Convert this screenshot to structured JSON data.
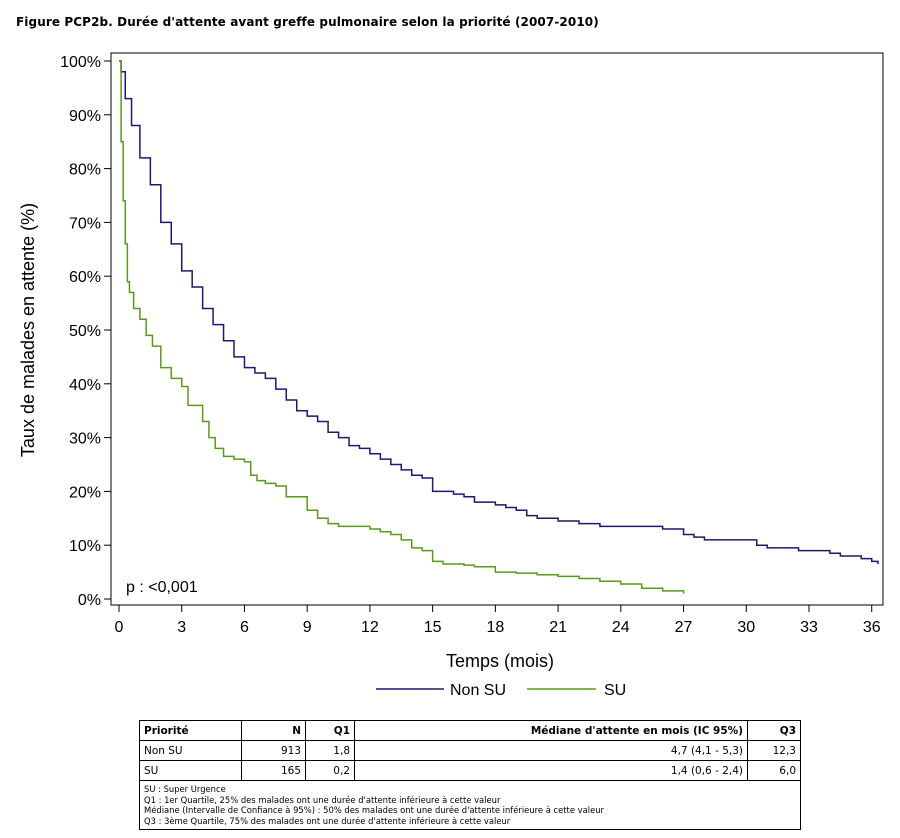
{
  "figure_title": "Figure PCP2b. Durée d'attente avant greffe pulmonaire selon la priorité (2007-2010)",
  "chart_data": {
    "type": "line",
    "xlabel": "Temps (mois)",
    "ylabel": "Taux de malades en attente (%)",
    "xlim": [
      0,
      36.3
    ],
    "ylim": [
      0,
      100
    ],
    "x_ticks": [
      0,
      3,
      6,
      9,
      12,
      15,
      18,
      21,
      24,
      27,
      30,
      33,
      36
    ],
    "y_ticks": [
      0,
      10,
      20,
      30,
      40,
      50,
      60,
      70,
      80,
      90,
      100
    ],
    "y_tick_labels": [
      "0%",
      "10%",
      "20%",
      "30%",
      "40%",
      "50%",
      "60%",
      "70%",
      "80%",
      "90%",
      "100%"
    ],
    "grid": false,
    "legend_position": "bottom-center",
    "annotation": "p : <0,001",
    "series": [
      {
        "name": "Non SU",
        "color": "#1a1a6e",
        "x": [
          0,
          0.1,
          0.3,
          0.6,
          1,
          1.5,
          2,
          2.5,
          3,
          3.5,
          4,
          4.5,
          5,
          5.5,
          6,
          6.5,
          7,
          7.5,
          8,
          8.5,
          9,
          9.5,
          10,
          10.5,
          11,
          11.5,
          12,
          12.5,
          13,
          13.5,
          14,
          14.5,
          15,
          15.5,
          16,
          16.5,
          17,
          17.5,
          18,
          18.5,
          19,
          19.5,
          20,
          20.5,
          21,
          21.5,
          22,
          22.5,
          23,
          23.5,
          24,
          24.5,
          25,
          25.5,
          26,
          26.5,
          27,
          27.5,
          28,
          28.5,
          29,
          29.5,
          30,
          30.5,
          31,
          31.5,
          32,
          32.5,
          33,
          33.5,
          34,
          34.5,
          35,
          35.5,
          36,
          36.3
        ],
        "values": [
          100,
          98,
          93,
          88,
          82,
          77,
          70,
          66,
          61,
          58,
          54,
          51,
          48,
          45,
          43,
          42,
          41,
          39,
          37,
          35,
          34,
          33,
          31,
          30,
          28.5,
          28,
          27,
          26,
          25,
          24,
          23,
          22.5,
          20,
          20,
          19.5,
          19,
          18,
          18,
          17.5,
          17,
          16.5,
          15.5,
          15,
          15,
          14.5,
          14.5,
          14,
          14,
          13.5,
          13.5,
          13.5,
          13.5,
          13.5,
          13.5,
          13,
          13,
          12,
          11.5,
          11,
          11,
          11,
          11,
          11,
          10,
          9.5,
          9.5,
          9.5,
          9,
          9,
          9,
          8.5,
          8,
          8,
          7.5,
          7,
          6.5
        ]
      },
      {
        "name": "SU",
        "color": "#5a9a1a",
        "x": [
          0,
          0.1,
          0.2,
          0.3,
          0.4,
          0.5,
          0.7,
          1,
          1.3,
          1.6,
          2,
          2.5,
          3,
          3.3,
          3.5,
          3.8,
          4,
          4.3,
          4.6,
          5,
          5.5,
          6,
          6.3,
          6.6,
          7,
          7.5,
          8,
          8.5,
          9,
          9.5,
          10,
          10.5,
          11,
          11.5,
          12,
          12.5,
          13,
          13.5,
          14,
          14.5,
          15,
          15.5,
          16,
          16.5,
          17,
          17.5,
          18,
          19,
          20,
          21,
          22,
          23,
          24,
          25,
          26,
          27
        ],
        "values": [
          100,
          85,
          74,
          66,
          59,
          57,
          54,
          52,
          49,
          47,
          43,
          41,
          39.5,
          36,
          36,
          36,
          33,
          30,
          28,
          26.5,
          26,
          25.5,
          23,
          22,
          21.5,
          21,
          19,
          19,
          16.5,
          15,
          14,
          13.5,
          13.5,
          13.5,
          13,
          12.5,
          12,
          11,
          9.5,
          9,
          7,
          6.5,
          6.5,
          6.3,
          6,
          6,
          5,
          4.8,
          4.5,
          4.2,
          3.8,
          3.3,
          2.8,
          2,
          1.5,
          1
        ]
      }
    ]
  },
  "stats_table": {
    "headers": [
      "Priorité",
      "N",
      "Q1",
      "Médiane d'attente en mois (IC 95%)",
      "Q3"
    ],
    "rows": [
      [
        "Non SU",
        "913",
        "1,8",
        "4,7 (4,1 - 5,3)",
        "12,3"
      ],
      [
        "SU",
        "165",
        "0,2",
        "1,4 (0,6 - 2,4)",
        "6,0"
      ]
    ],
    "notes": [
      "SU : Super Urgence",
      "Q1 : 1er Quartile, 25% des malades ont une durée d'attente inférieure à cette valeur",
      "Médiane (Intervalle de Confiance à 95%) : 50% des malades ont une durée d'attente inférieure à cette valeur",
      "Q3 : 3ème Quartile, 75% des malades ont une durée d'attente inférieure à cette valeur"
    ]
  }
}
